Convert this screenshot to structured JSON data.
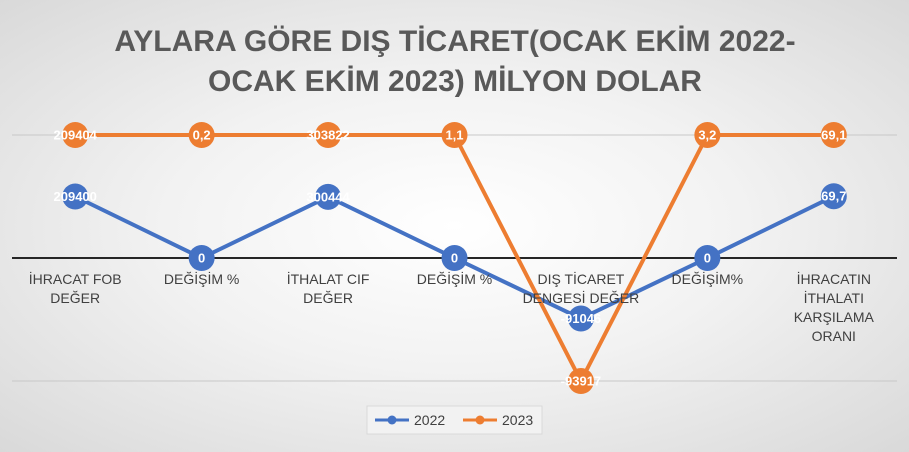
{
  "chart_data": {
    "type": "line",
    "stacked": "percent",
    "title": "AYLARA GÖRE DIŞ TİCARET(OCAK EKİM 2022-OCAK EKİM 2023) MİLYON DOLAR",
    "categories": [
      "İHRACAT FOB DEĞER",
      "DEĞİŞİM %",
      "İTHALAT CIF DEĞER",
      "DEĞİŞİM %",
      "DIŞ TİCARET DENGESİ DEĞER",
      "DEĞİŞİM%",
      "İHRACATIN İTHALATI KARŞILAMA ORANI"
    ],
    "series": [
      {
        "name": "2022",
        "color": "#4472c4",
        "values": [
          209400,
          0,
          300444,
          0,
          -91046,
          0,
          69.7
        ],
        "value_labels": [
          "209400",
          "0",
          "300444",
          "0",
          "-91046",
          "0",
          "69,7"
        ]
      },
      {
        "name": "2023",
        "color": "#ed7d31",
        "values": [
          209404,
          0.2,
          303822,
          1.1,
          -93917,
          3.2,
          69.1
        ],
        "value_labels": [
          "209404",
          "0,2",
          "303822",
          "1,1",
          "-93917",
          "3,2",
          "69,1"
        ]
      }
    ],
    "ylim": [
      -1,
      1
    ],
    "grid": true,
    "legend": "bottom"
  }
}
